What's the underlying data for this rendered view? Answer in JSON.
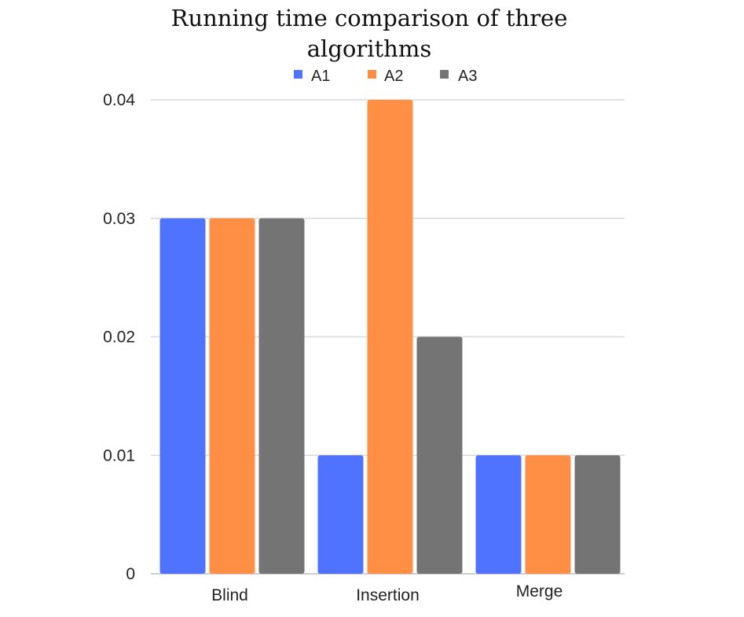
{
  "chart_data": {
    "type": "bar",
    "title_lines": [
      "Running time comparison of three",
      "algorithms"
    ],
    "categories": [
      "Blind",
      "Insertion",
      "Merge"
    ],
    "series": [
      {
        "name": "A1",
        "color": "#4f72ff",
        "values": [
          0.03,
          0.01,
          0.01
        ]
      },
      {
        "name": "A2",
        "color": "#ff8f45",
        "values": [
          0.03,
          0.04,
          0.01
        ]
      },
      {
        "name": "A3",
        "color": "#747474",
        "values": [
          0.03,
          0.02,
          0.01
        ]
      }
    ],
    "yticks": [
      "0",
      "0.01",
      "0.02",
      "0.03",
      "0.04"
    ],
    "ytick_values": [
      0,
      0.01,
      0.02,
      0.03,
      0.04
    ],
    "ylim": [
      0,
      0.04
    ],
    "xlabel": "",
    "ylabel": "",
    "grid": true,
    "legend_position": "top"
  }
}
